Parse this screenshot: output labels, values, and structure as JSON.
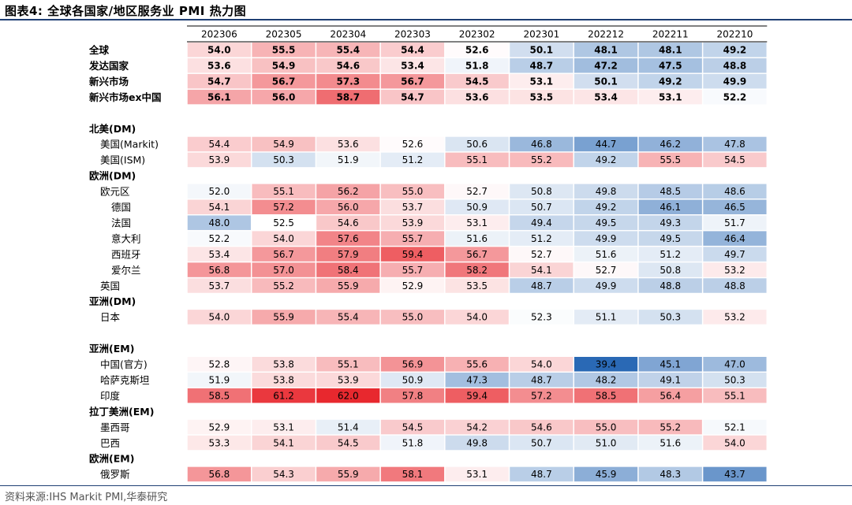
{
  "figure": {
    "title": "图表4:  全球各国家/地区服务业 PMI 热力图",
    "source": "资料来源:IHS Markit PMI,华泰研究"
  },
  "colors": {
    "high": "#e8282e",
    "mid": "#ffffff",
    "low": "#2a69b5",
    "rule": "#1f3f73"
  },
  "chart_data": {
    "type": "heatmap",
    "columns": [
      "202306",
      "202305",
      "202304",
      "202303",
      "202302",
      "202301",
      "202212",
      "202211",
      "202210"
    ],
    "color_scale": {
      "low": 39.4,
      "mid": 52.5,
      "high": 62.0
    },
    "rows": [
      {
        "label": "全球",
        "bold": true,
        "indent": 0,
        "values": [
          54.0,
          55.5,
          55.4,
          54.4,
          52.6,
          50.1,
          48.1,
          48.1,
          49.2
        ]
      },
      {
        "label": "发达国家",
        "bold": true,
        "indent": 0,
        "values": [
          53.6,
          54.9,
          54.6,
          53.4,
          51.8,
          48.7,
          47.2,
          47.5,
          48.8
        ]
      },
      {
        "label": "新兴市场",
        "bold": true,
        "indent": 0,
        "values": [
          54.7,
          56.7,
          57.3,
          56.7,
          54.5,
          53.1,
          50.1,
          49.2,
          49.9
        ]
      },
      {
        "label": "新兴市场ex中国",
        "bold": true,
        "indent": 0,
        "values": [
          56.1,
          56.0,
          58.7,
          54.7,
          53.6,
          53.5,
          53.4,
          53.1,
          52.2
        ]
      },
      {
        "label": "",
        "spacer": true
      },
      {
        "label": "北美(DM)",
        "bold": true,
        "indent": 0,
        "header": true
      },
      {
        "label": "美国(Markit)",
        "bold": false,
        "indent": 1,
        "values": [
          54.4,
          54.9,
          53.6,
          52.6,
          50.6,
          46.8,
          44.7,
          46.2,
          47.8
        ]
      },
      {
        "label": "美国(ISM)",
        "bold": false,
        "indent": 1,
        "values": [
          53.9,
          50.3,
          51.9,
          51.2,
          55.1,
          55.2,
          49.2,
          55.5,
          54.5
        ]
      },
      {
        "label": "欧洲(DM)",
        "bold": true,
        "indent": 0,
        "header": true
      },
      {
        "label": "欧元区",
        "bold": false,
        "indent": 1,
        "values": [
          52.0,
          55.1,
          56.2,
          55.0,
          52.7,
          50.8,
          49.8,
          48.5,
          48.6
        ]
      },
      {
        "label": "德国",
        "bold": false,
        "indent": 2,
        "values": [
          54.1,
          57.2,
          56.0,
          53.7,
          50.9,
          50.7,
          49.2,
          46.1,
          46.5
        ]
      },
      {
        "label": "法国",
        "bold": false,
        "indent": 2,
        "values": [
          48.0,
          52.5,
          54.6,
          53.9,
          53.1,
          49.4,
          49.5,
          49.3,
          51.7
        ]
      },
      {
        "label": "意大利",
        "bold": false,
        "indent": 2,
        "values": [
          52.2,
          54.0,
          57.6,
          55.7,
          51.6,
          51.2,
          49.9,
          49.5,
          46.4
        ]
      },
      {
        "label": "西班牙",
        "bold": false,
        "indent": 2,
        "values": [
          53.4,
          56.7,
          57.9,
          59.4,
          56.7,
          52.7,
          51.6,
          51.2,
          49.7
        ]
      },
      {
        "label": "爱尔兰",
        "bold": false,
        "indent": 2,
        "values": [
          56.8,
          57.0,
          58.4,
          55.7,
          58.2,
          54.1,
          52.7,
          50.8,
          53.2
        ]
      },
      {
        "label": "英国",
        "bold": false,
        "indent": 1,
        "values": [
          53.7,
          55.2,
          55.9,
          52.9,
          53.5,
          48.7,
          49.9,
          48.8,
          48.8
        ]
      },
      {
        "label": "亚洲(DM)",
        "bold": true,
        "indent": 0,
        "header": true
      },
      {
        "label": "日本",
        "bold": false,
        "indent": 1,
        "values": [
          54.0,
          55.9,
          55.4,
          55.0,
          54.0,
          52.3,
          51.1,
          50.3,
          53.2
        ]
      },
      {
        "label": "",
        "spacer": true
      },
      {
        "label": "亚洲(EM)",
        "bold": true,
        "indent": 0,
        "header": true
      },
      {
        "label": "中国(官方)",
        "bold": false,
        "indent": 1,
        "values": [
          52.8,
          53.8,
          55.1,
          56.9,
          55.6,
          54.0,
          39.4,
          45.1,
          47.0
        ]
      },
      {
        "label": "哈萨克斯坦",
        "bold": false,
        "indent": 1,
        "values": [
          51.9,
          53.8,
          53.9,
          50.9,
          47.3,
          48.7,
          48.2,
          49.1,
          50.3
        ]
      },
      {
        "label": "印度",
        "bold": false,
        "indent": 1,
        "values": [
          58.5,
          61.2,
          62.0,
          57.8,
          59.4,
          57.2,
          58.5,
          56.4,
          55.1
        ]
      },
      {
        "label": "拉丁美洲(EM)",
        "bold": true,
        "indent": 0,
        "header": true
      },
      {
        "label": "墨西哥",
        "bold": false,
        "indent": 1,
        "values": [
          52.9,
          53.1,
          51.4,
          54.5,
          54.2,
          54.6,
          55.0,
          55.2,
          52.1
        ]
      },
      {
        "label": "巴西",
        "bold": false,
        "indent": 1,
        "values": [
          53.3,
          54.1,
          54.5,
          51.8,
          49.8,
          50.7,
          51.0,
          51.6,
          54.0
        ]
      },
      {
        "label": "欧洲(EM)",
        "bold": true,
        "indent": 0,
        "header": true
      },
      {
        "label": "俄罗斯",
        "bold": false,
        "indent": 1,
        "values": [
          56.8,
          54.3,
          55.9,
          58.1,
          53.1,
          48.7,
          45.9,
          48.3,
          43.7
        ]
      }
    ]
  }
}
